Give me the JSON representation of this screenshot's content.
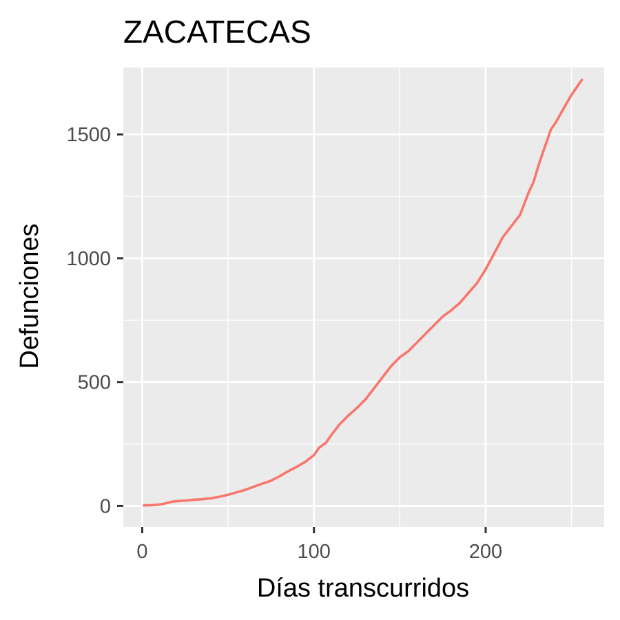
{
  "chart_data": {
    "type": "line",
    "title": "ZACATECAS",
    "xlabel": "Días transcurridos",
    "ylabel": "Defunciones",
    "xlim": [
      -11,
      269
    ],
    "ylim": [
      -85,
      1770
    ],
    "x_ticks": [
      0,
      100,
      200
    ],
    "x_tick_labels": [
      "0",
      "100",
      "200"
    ],
    "y_ticks": [
      0,
      500,
      1000,
      1500
    ],
    "y_tick_labels": [
      "0",
      "500",
      "1000",
      "1500"
    ],
    "x_minor_ticks": [
      50,
      150,
      250
    ],
    "y_minor_ticks": [
      250,
      750,
      1250
    ],
    "grid": true,
    "legend": "none",
    "colors": {
      "panel_background": "#ebebeb",
      "grid": "#ffffff",
      "line": "#f8766d",
      "tick_text": "#4d4d4d",
      "tick_mark": "#333333"
    },
    "series": [
      {
        "x": [
          1,
          5,
          9,
          12,
          15,
          18,
          22,
          26,
          30,
          35,
          40,
          45,
          50,
          55,
          60,
          65,
          70,
          75,
          80,
          85,
          90,
          95,
          100,
          103,
          107,
          110,
          115,
          120,
          125,
          130,
          135,
          140,
          145,
          150,
          155,
          160,
          165,
          170,
          175,
          180,
          185,
          190,
          195,
          200,
          205,
          210,
          215,
          220,
          225,
          228,
          231,
          235,
          238,
          241,
          245,
          250,
          253,
          256
        ],
        "y": [
          2,
          3,
          5,
          8,
          13,
          18,
          20,
          22,
          25,
          27,
          31,
          37,
          45,
          55,
          65,
          78,
          90,
          102,
          120,
          140,
          158,
          178,
          205,
          235,
          255,
          285,
          330,
          365,
          395,
          430,
          475,
          520,
          565,
          600,
          625,
          660,
          695,
          730,
          765,
          790,
          820,
          860,
          900,
          955,
          1020,
          1085,
          1130,
          1175,
          1265,
          1310,
          1380,
          1460,
          1520,
          1550,
          1600,
          1660,
          1690,
          1720
        ]
      }
    ]
  }
}
